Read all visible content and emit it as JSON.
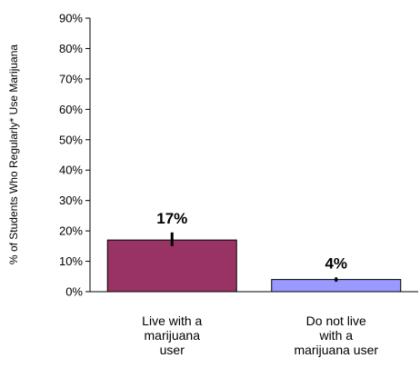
{
  "chart_data": {
    "type": "bar",
    "title": "",
    "xlabel": "",
    "ylabel": "% of Students Who Regularly* Use Marijuana",
    "ylim": [
      0,
      90
    ],
    "y_ticks": [
      "0%",
      "10%",
      "20%",
      "30%",
      "40%",
      "50%",
      "60%",
      "70%",
      "80%",
      "90%"
    ],
    "categories": [
      [
        "Live with a",
        "marijuana",
        "user"
      ],
      [
        "Do not live",
        "with a",
        "marijuana user"
      ]
    ],
    "values": [
      17,
      4
    ],
    "error_bars": [
      [
        15,
        19.5
      ],
      [
        3.3,
        4.7
      ]
    ],
    "data_labels": [
      "17%",
      "4%"
    ],
    "bar_colors": [
      "#993366",
      "#9999ff"
    ],
    "grid": false,
    "legend": "none"
  }
}
